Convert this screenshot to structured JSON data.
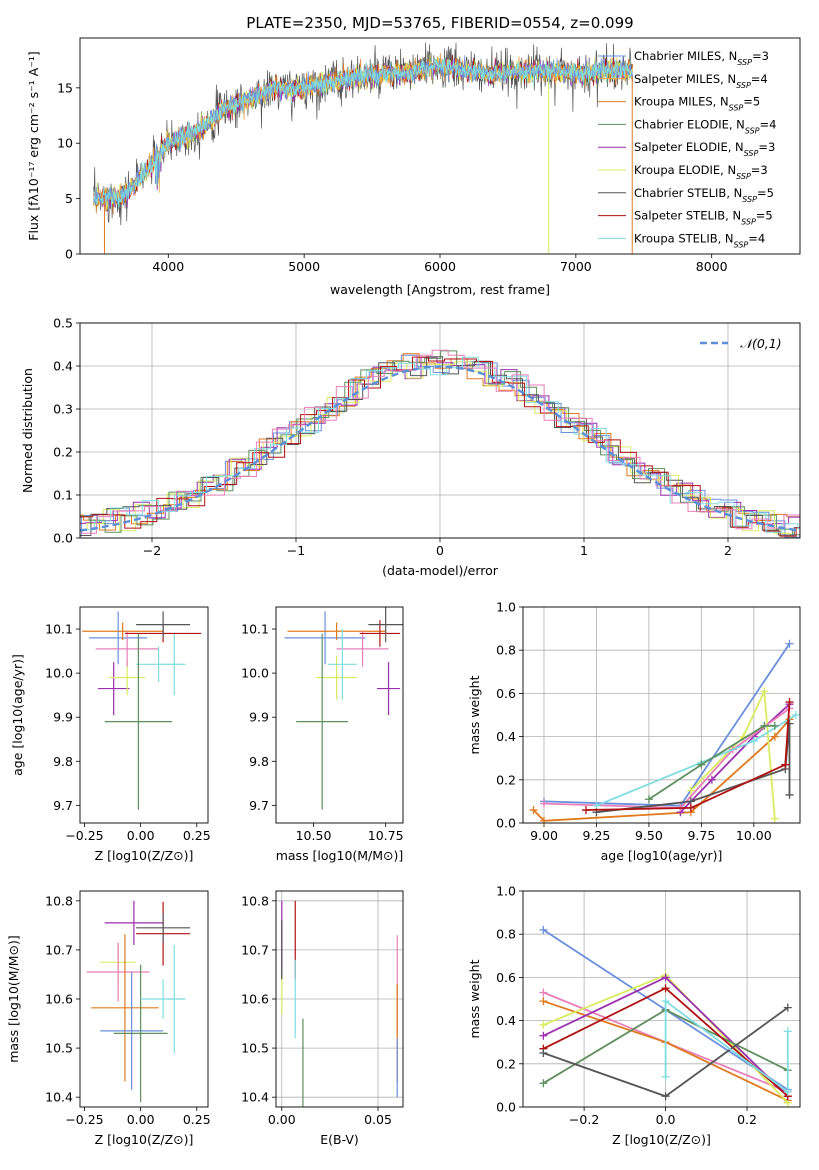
{
  "title": "PLATE=2350, MJD=53765, FIBERID=0554, z=0.099",
  "colors": {
    "chabrier_miles": "#6a8fdc",
    "salpeter_miles": "#e6a84a",
    "kroupa_miles": "#e07a1f",
    "chabrier_elodie": "#5f8f5f",
    "salpeter_elodie": "#9b2fae",
    "kroupa_elodie": "#d9ec5f",
    "chabrier_stelib": "#555555",
    "salpeter_stelib": "#b01010",
    "kroupa_stelib": "#7fdde0",
    "pink": "#e87fb8",
    "normal_curve": "#5b8fd8"
  },
  "chart_data": [
    {
      "type": "line",
      "xlabel": "wavelength [Angstrom, rest frame]",
      "ylabel": "Flux [fλ10⁻¹⁷ erg cm⁻² s⁻¹ A⁻¹]",
      "xlim": [
        3350,
        8650
      ],
      "ylim": [
        0,
        19.5
      ],
      "xticks": [
        "4000",
        "5000",
        "6000",
        "7000",
        "8000"
      ],
      "yticks": [
        "0",
        "5",
        "10",
        "15"
      ],
      "legend_position": "right",
      "legend": [
        "Chabrier MILES, N_SSP=3",
        "Salpeter MILES, N_SSP=4",
        "Kroupa MILES, N_SSP=5",
        "Chabrier ELODIE, N_SSP=4",
        "Salpeter ELODIE, N_SSP=3",
        "Kroupa ELODIE, N_SSP=3",
        "Chabrier STELIB, N_SSP=5",
        "Salpeter STELIB, N_SSP=5",
        "Kroupa STELIB, N_SSP=4"
      ],
      "continuum_x": [
        3450,
        3600,
        3700,
        3800,
        3900,
        4000,
        4100,
        4200,
        4300,
        4400,
        4500,
        4600,
        4700,
        4800,
        4900,
        5000,
        5200,
        5400,
        5600,
        5800,
        6000,
        6200,
        6400,
        6600,
        6800,
        7000,
        7200,
        7400
      ],
      "continuum_y": [
        5,
        5,
        5.5,
        7,
        8.5,
        10,
        10.5,
        11,
        12,
        13,
        13.5,
        14,
        14.5,
        15,
        14.8,
        15,
        15.5,
        16,
        16.2,
        16.5,
        17,
        16.5,
        16.2,
        16.5,
        16.5,
        16.3,
        16.5,
        16.5
      ]
    },
    {
      "type": "histogram",
      "xlabel": "(data-model)/error",
      "ylabel": "Normed distribution",
      "xlim": [
        -2.5,
        2.5
      ],
      "ylim": [
        0,
        0.5
      ],
      "xticks": [
        "−2",
        "−1",
        "0",
        "1",
        "2"
      ],
      "yticks": [
        "0.0",
        "0.1",
        "0.2",
        "0.3",
        "0.4",
        "0.5"
      ],
      "legend": [
        "N(0,1)"
      ],
      "legend_position": "top-right",
      "bin_width": 0.111,
      "reference_curve": "standard normal"
    },
    {
      "type": "scatter",
      "xlabel": "Z [log10(Z/Z⊙)]",
      "ylabel": "age  [log10(age/yr)]",
      "xlim": [
        -0.27,
        0.3
      ],
      "ylim": [
        9.66,
        10.15
      ],
      "xticks": [
        "−0.25",
        "0.00",
        "0.25"
      ],
      "yticks": [
        "9.7",
        "9.8",
        "9.9",
        "10.0",
        "10.1"
      ],
      "points": [
        {
          "c": "chabrier_miles",
          "x": -0.1,
          "y": 10.08,
          "ex": 0.13,
          "ey": 0.06
        },
        {
          "c": "kroupa_miles",
          "x": -0.08,
          "y": 10.095,
          "ex": 0.18,
          "ey": 0.02
        },
        {
          "c": "salpeter_elodie",
          "x": -0.12,
          "y": 9.965,
          "ex": 0.07,
          "ey": 0.06
        },
        {
          "c": "kroupa_elodie",
          "x": -0.06,
          "y": 9.99,
          "ex": 0.08,
          "ey": 0.04
        },
        {
          "c": "pink",
          "x": -0.06,
          "y": 10.055,
          "ex": 0.14,
          "ey": 0.04
        },
        {
          "c": "kroupa_stelib",
          "x": 0.08,
          "y": 10.02,
          "ex": 0.1,
          "ey": 0.04
        },
        {
          "c": "kroupa_stelib",
          "x": 0.15,
          "y": 10.02,
          "ex": 0.05,
          "ey": 0.07
        },
        {
          "c": "salpeter_stelib",
          "x": 0.1,
          "y": 10.09,
          "ex": 0.17,
          "ey": 0.02
        },
        {
          "c": "chabrier_stelib",
          "x": 0.1,
          "y": 10.11,
          "ex": 0.12,
          "ey": 0.03
        },
        {
          "c": "chabrier_elodie",
          "x": -0.01,
          "y": 9.89,
          "ex": 0.15,
          "ey": 0.2
        }
      ]
    },
    {
      "type": "scatter",
      "xlabel": "mass [log10(M/M⊙)]",
      "ylabel": "",
      "xlim": [
        10.37,
        10.81
      ],
      "ylim": [
        9.66,
        10.15
      ],
      "xticks": [
        "10.50",
        "10.75"
      ],
      "yticks": [
        "9.7",
        "9.8",
        "9.9",
        "10.0",
        "10.1"
      ],
      "points": [
        {
          "c": "chabrier_miles",
          "x": 10.54,
          "y": 10.08,
          "ex": 0.14,
          "ey": 0.06
        },
        {
          "c": "kroupa_miles",
          "x": 10.58,
          "y": 10.095,
          "ex": 0.17,
          "ey": 0.02
        },
        {
          "c": "kroupa_elodie",
          "x": 10.58,
          "y": 9.99,
          "ex": 0.07,
          "ey": 0.05
        },
        {
          "c": "pink",
          "x": 10.67,
          "y": 10.055,
          "ex": 0.09,
          "ey": 0.04
        },
        {
          "c": "kroupa_stelib",
          "x": 10.6,
          "y": 10.02,
          "ex": 0.05,
          "ey": 0.08
        },
        {
          "c": "salpeter_stelib",
          "x": 10.73,
          "y": 10.09,
          "ex": 0.07,
          "ey": 0.03
        },
        {
          "c": "chabrier_stelib",
          "x": 10.75,
          "y": 10.11,
          "ex": 0.06,
          "ey": 0.04
        },
        {
          "c": "salpeter_elodie",
          "x": 10.76,
          "y": 9.965,
          "ex": 0.04,
          "ey": 0.06
        },
        {
          "c": "chabrier_elodie",
          "x": 10.53,
          "y": 9.89,
          "ex": 0.09,
          "ey": 0.2
        }
      ]
    },
    {
      "type": "line",
      "xlabel": "age  [log10(age/yr)]",
      "ylabel": "mass weight",
      "xlim": [
        8.9,
        10.22
      ],
      "ylim": [
        0,
        1
      ],
      "xticks": [
        "9.00",
        "9.25",
        "9.50",
        "9.75",
        "10.00"
      ],
      "yticks": [
        "0.0",
        "0.2",
        "0.4",
        "0.6",
        "0.8",
        "1.0"
      ],
      "series": [
        {
          "c": "chabrier_miles",
          "x": [
            9.0,
            9.65,
            10.17
          ],
          "y": [
            0.1,
            0.08,
            0.83
          ]
        },
        {
          "c": "kroupa_miles",
          "x": [
            8.95,
            9.0,
            9.7,
            10.1,
            10.17
          ],
          "y": [
            0.06,
            0.01,
            0.05,
            0.4,
            0.48
          ]
        },
        {
          "c": "salpeter_elodie",
          "x": [
            9.65,
            9.8,
            10.0,
            10.17
          ],
          "y": [
            0.05,
            0.2,
            0.4,
            0.55
          ]
        },
        {
          "c": "kroupa_elodie",
          "x": [
            9.7,
            9.95,
            10.05,
            10.1
          ],
          "y": [
            0.15,
            0.4,
            0.61,
            0.02
          ]
        },
        {
          "c": "pink",
          "x": [
            9.0,
            9.65,
            9.9,
            10.17
          ],
          "y": [
            0.09,
            0.07,
            0.34,
            0.53
          ]
        },
        {
          "c": "kroupa_stelib",
          "x": [
            9.25,
            9.75,
            10.0,
            10.2
          ],
          "y": [
            0.08,
            0.28,
            0.38,
            0.5
          ]
        },
        {
          "c": "chabrier_elodie",
          "x": [
            9.5,
            9.75,
            10.05,
            10.1
          ],
          "y": [
            0.11,
            0.27,
            0.45,
            0.45
          ]
        },
        {
          "c": "chabrier_stelib",
          "x": [
            9.25,
            9.7,
            10.15,
            10.17,
            10.17
          ],
          "y": [
            0.05,
            0.1,
            0.25,
            0.46,
            0.13
          ]
        },
        {
          "c": "salpeter_stelib",
          "x": [
            9.2,
            9.7,
            10.15,
            10.17
          ],
          "y": [
            0.06,
            0.07,
            0.27,
            0.56
          ]
        }
      ]
    },
    {
      "type": "scatter",
      "xlabel": "Z [log10(Z/Z⊙)]",
      "ylabel": "mass [log10(M/M⊙)]",
      "xlim": [
        -0.27,
        0.3
      ],
      "ylim": [
        10.38,
        10.82
      ],
      "xticks": [
        "−0.25",
        "0.00",
        "0.25"
      ],
      "yticks": [
        "10.4",
        "10.5",
        "10.6",
        "10.7",
        "10.8"
      ],
      "points": [
        {
          "c": "salpeter_elodie",
          "x": -0.03,
          "y": 10.755,
          "ex": 0.13,
          "ey": 0.045
        },
        {
          "c": "kroupa_elodie",
          "x": -0.1,
          "y": 10.675,
          "ex": 0.08,
          "ey": 0.04
        },
        {
          "c": "pink",
          "x": -0.1,
          "y": 10.655,
          "ex": 0.14,
          "ey": 0.06
        },
        {
          "c": "kroupa_miles",
          "x": -0.07,
          "y": 10.582,
          "ex": 0.15,
          "ey": 0.15
        },
        {
          "c": "chabrier_miles",
          "x": -0.04,
          "y": 10.535,
          "ex": 0.14,
          "ey": 0.12
        },
        {
          "c": "chabrier_elodie",
          "x": 0.0,
          "y": 10.53,
          "ex": 0.12,
          "ey": 0.14
        },
        {
          "c": "kroupa_stelib",
          "x": 0.1,
          "y": 10.6,
          "ex": 0.1,
          "ey": 0.04
        },
        {
          "c": "kroupa_stelib",
          "x": 0.15,
          "y": 10.6,
          "ex": 0.03,
          "ey": 0.11
        },
        {
          "c": "salpeter_stelib",
          "x": 0.1,
          "y": 10.733,
          "ex": 0.12,
          "ey": 0.065
        },
        {
          "c": "chabrier_stelib",
          "x": 0.1,
          "y": 10.745,
          "ex": 0.12,
          "ey": 0.03
        }
      ]
    },
    {
      "type": "scatter",
      "xlabel": "E(B-V)",
      "ylabel": "",
      "xlim": [
        -0.003,
        0.063
      ],
      "ylim": [
        10.38,
        10.82
      ],
      "xticks": [
        "0.00",
        "0.05"
      ],
      "yticks": [
        "10.4",
        "10.5",
        "10.6",
        "10.7",
        "10.8"
      ],
      "points": [
        {
          "c": "salpeter_elodie",
          "x": 0.0,
          "y": 10.72,
          "ex": 0,
          "ey": 0.08
        },
        {
          "c": "kroupa_elodie",
          "x": 0.0,
          "y": 10.61,
          "ex": 0,
          "ey": 0.04
        },
        {
          "c": "chabrier_stelib",
          "x": 0.0,
          "y": 10.7,
          "ex": 0,
          "ey": 0.06
        },
        {
          "c": "salpeter_stelib",
          "x": 0.007,
          "y": 10.72,
          "ex": 0,
          "ey": 0.08
        },
        {
          "c": "kroupa_stelib",
          "x": 0.007,
          "y": 10.6,
          "ex": 0,
          "ey": 0.08
        },
        {
          "c": "chabrier_elodie",
          "x": 0.011,
          "y": 10.47,
          "ex": 0,
          "ey": 0.09
        },
        {
          "c": "pink",
          "x": 0.06,
          "y": 10.63,
          "ex": 0,
          "ey": 0.1
        },
        {
          "c": "kroupa_miles",
          "x": 0.06,
          "y": 10.53,
          "ex": 0,
          "ey": 0.1
        },
        {
          "c": "chabrier_miles",
          "x": 0.06,
          "y": 10.46,
          "ex": 0,
          "ey": 0.06
        }
      ]
    },
    {
      "type": "line",
      "xlabel": "Z [log10(Z/Z⊙)]",
      "ylabel": "mass weight",
      "xlim": [
        -0.35,
        0.33
      ],
      "ylim": [
        0,
        1
      ],
      "xticks": [
        "−0.2",
        "0.0",
        "0.2"
      ],
      "yticks": [
        "0.0",
        "0.2",
        "0.4",
        "0.6",
        "0.8",
        "1.0"
      ],
      "series": [
        {
          "c": "chabrier_miles",
          "x": [
            -0.3,
            0.0,
            0.3
          ],
          "y": [
            0.82,
            0.45,
            0.08
          ]
        },
        {
          "c": "pink",
          "x": [
            -0.3,
            0.0,
            0.3
          ],
          "y": [
            0.53,
            0.3,
            0.07
          ]
        },
        {
          "c": "kroupa_miles",
          "x": [
            -0.3,
            0.0,
            0.3
          ],
          "y": [
            0.49,
            0.3,
            0.03
          ]
        },
        {
          "c": "kroupa_elodie",
          "x": [
            -0.3,
            0.0,
            0.3
          ],
          "y": [
            0.38,
            0.61,
            0.02
          ]
        },
        {
          "c": "salpeter_elodie",
          "x": [
            -0.3,
            0.0,
            0.3
          ],
          "y": [
            0.33,
            0.6,
            0.05
          ]
        },
        {
          "c": "chabrier_elodie",
          "x": [
            -0.3,
            0.0,
            0.3
          ],
          "y": [
            0.11,
            0.45,
            0.17
          ]
        },
        {
          "c": "salpeter_stelib",
          "x": [
            -0.3,
            0.0,
            0.3
          ],
          "y": [
            0.27,
            0.55,
            0.05
          ]
        },
        {
          "c": "chabrier_stelib",
          "x": [
            -0.3,
            0.0,
            0.3
          ],
          "y": [
            0.25,
            0.05,
            0.46
          ]
        },
        {
          "c": "kroupa_stelib",
          "x": [
            0.0,
            0.0,
            0.3,
            0.3
          ],
          "y": [
            0.14,
            0.49,
            0.07,
            0.35
          ]
        }
      ]
    }
  ]
}
